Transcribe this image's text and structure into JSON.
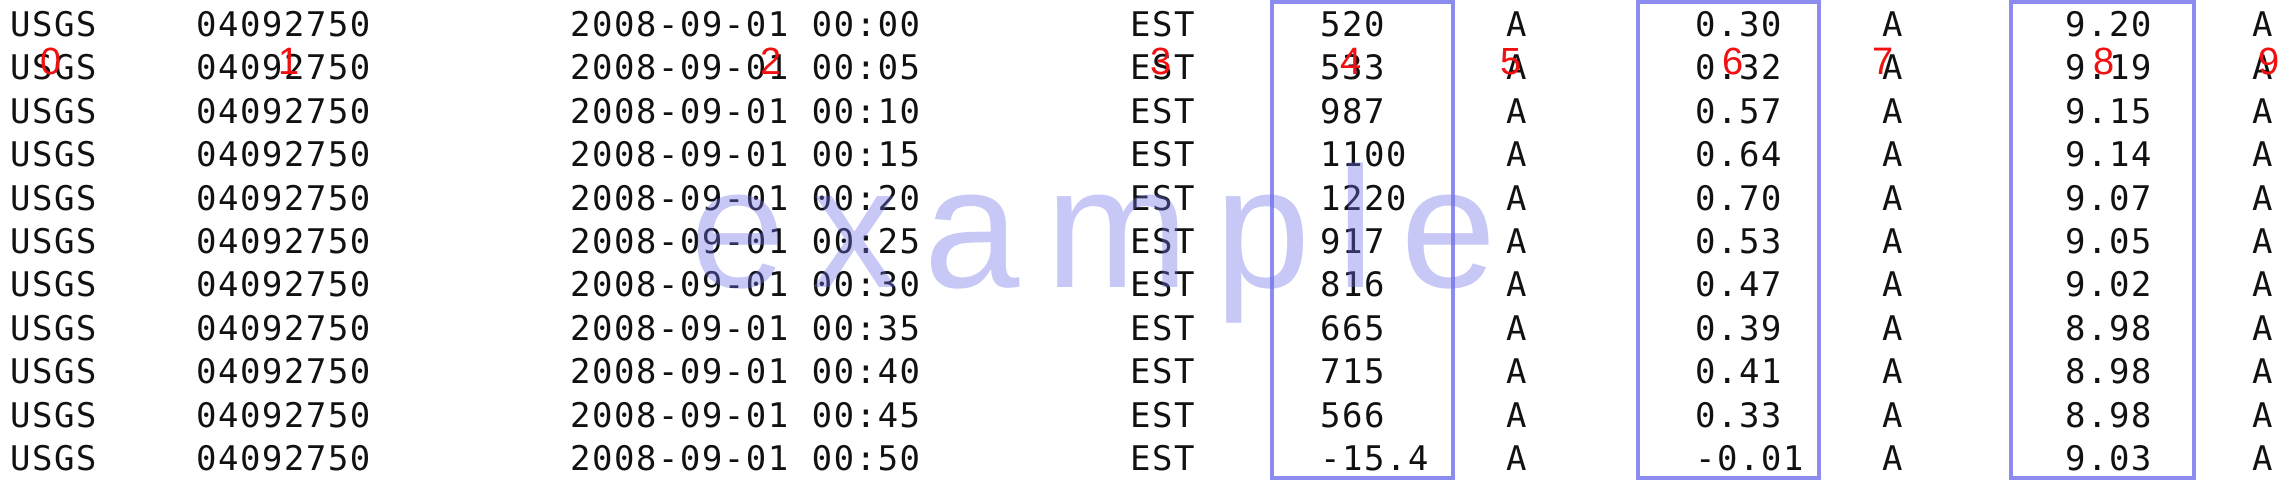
{
  "watermark_text": "example",
  "column_indices": [
    "0",
    "1",
    "2",
    "3",
    "4",
    "5",
    "6",
    "7",
    "8",
    "9"
  ],
  "rows": [
    [
      "USGS",
      "04092750",
      "2008-09-01 00:00",
      "EST",
      "520",
      "A",
      "0.30",
      "A",
      "9.20",
      "A"
    ],
    [
      "USGS",
      "04092750",
      "2008-09-01 00:05",
      "EST",
      "533",
      "A",
      "0.32",
      "A",
      "9.19",
      "A"
    ],
    [
      "USGS",
      "04092750",
      "2008-09-01 00:10",
      "EST",
      "987",
      "A",
      "0.57",
      "A",
      "9.15",
      "A"
    ],
    [
      "USGS",
      "04092750",
      "2008-09-01 00:15",
      "EST",
      "1100",
      "A",
      "0.64",
      "A",
      "9.14",
      "A"
    ],
    [
      "USGS",
      "04092750",
      "2008-09-01 00:20",
      "EST",
      "1220",
      "A",
      "0.70",
      "A",
      "9.07",
      "A"
    ],
    [
      "USGS",
      "04092750",
      "2008-09-01 00:25",
      "EST",
      "917",
      "A",
      "0.53",
      "A",
      "9.05",
      "A"
    ],
    [
      "USGS",
      "04092750",
      "2008-09-01 00:30",
      "EST",
      "816",
      "A",
      "0.47",
      "A",
      "9.02",
      "A"
    ],
    [
      "USGS",
      "04092750",
      "2008-09-01 00:35",
      "EST",
      "665",
      "A",
      "0.39",
      "A",
      "8.98",
      "A"
    ],
    [
      "USGS",
      "04092750",
      "2008-09-01 00:40",
      "EST",
      "715",
      "A",
      "0.41",
      "A",
      "8.98",
      "A"
    ],
    [
      "USGS",
      "04092750",
      "2008-09-01 00:45",
      "EST",
      "566",
      "A",
      "0.33",
      "A",
      "8.98",
      "A"
    ],
    [
      "USGS",
      "04092750",
      "2008-09-01 00:50",
      "EST",
      "-15.4",
      "A",
      "-0.01",
      "A",
      "9.03",
      "A"
    ]
  ],
  "highlighted_columns": [
    4,
    6,
    8
  ],
  "colors": {
    "text": "#111111",
    "index_label": "#f01010",
    "highlight_border": "#8b8bf0",
    "watermark": "#6e6eeb"
  }
}
